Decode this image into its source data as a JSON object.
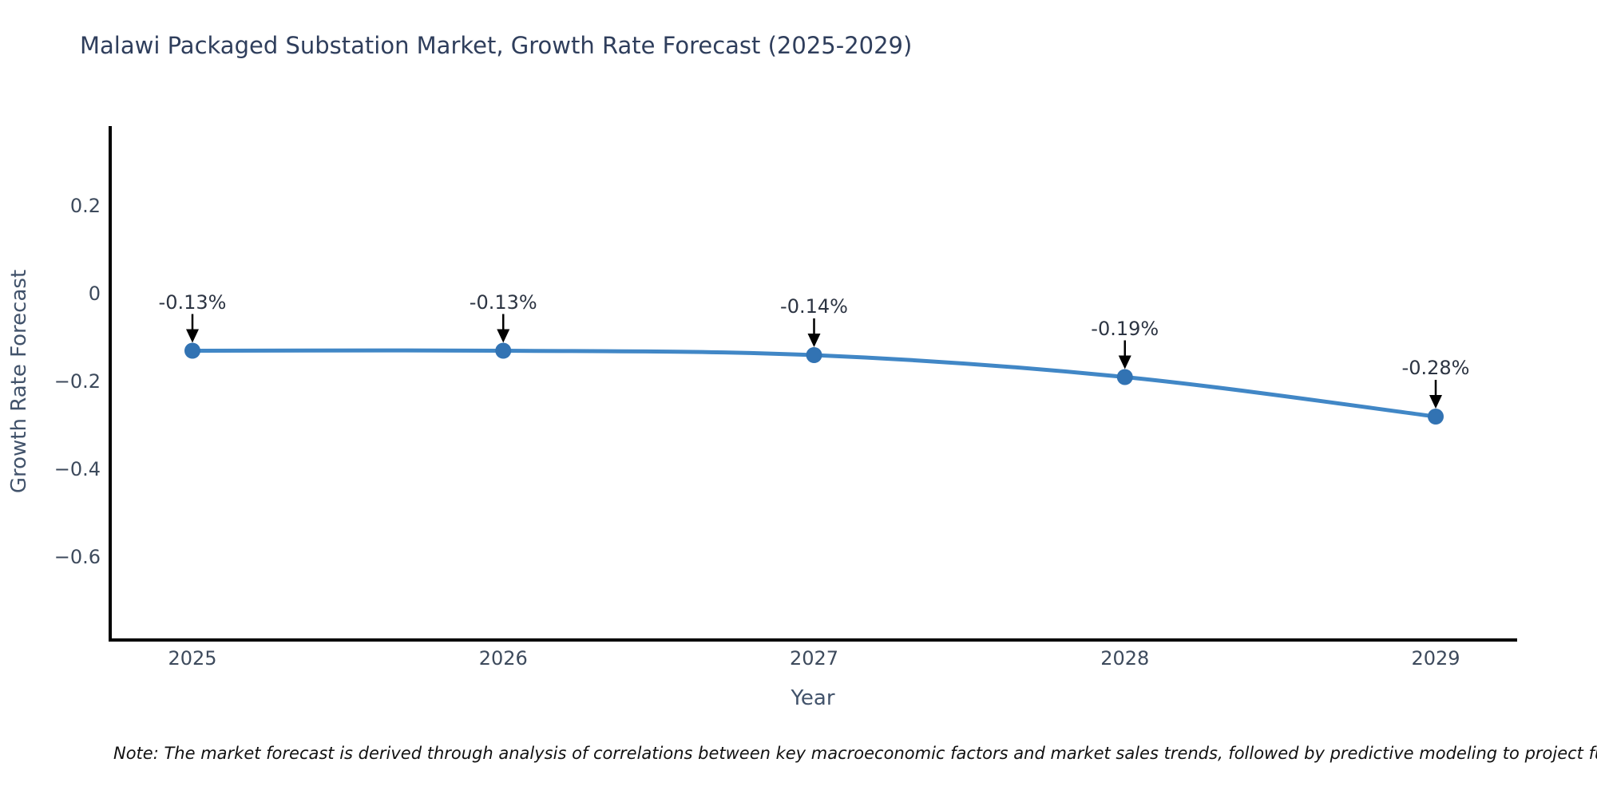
{
  "title": "Malawi Packaged Substation Market, Growth Rate Forecast (2025-2029)",
  "note": "Note: The market forecast is derived through analysis of correlations between key macroeconomic factors and market sales trends, followed by predictive modeling to project future sales.",
  "chart_data": {
    "type": "line",
    "title": "Malawi Packaged Substation Market, Growth Rate Forecast (2025-2029)",
    "xlabel": "Year",
    "ylabel": "Growth Rate Forecast",
    "x": [
      2025,
      2026,
      2027,
      2028,
      2029
    ],
    "y": [
      -0.13,
      -0.13,
      -0.14,
      -0.19,
      -0.28
    ],
    "point_labels": [
      "-0.13%",
      "-0.13%",
      "-0.14%",
      "-0.19%",
      "-0.28%"
    ],
    "x_ticks": {
      "values": [
        2025,
        2026,
        2027,
        2028,
        2029
      ],
      "labels": [
        "2025",
        "2026",
        "2027",
        "2028",
        "2029"
      ]
    },
    "y_ticks": {
      "values": [
        0.2,
        0,
        -0.2,
        -0.4,
        -0.6
      ],
      "labels": [
        "0.2",
        "0",
        "−0.2",
        "−0.4",
        "−0.6"
      ]
    },
    "xlim": [
      2024.74,
      2029.26
    ],
    "ylim": [
      -0.785,
      0.378
    ],
    "grid": false,
    "legend": null,
    "line_color": "#4187c6",
    "marker_color": "#3273b3",
    "arrow_color": "#000000",
    "spine_color": "#000000"
  }
}
